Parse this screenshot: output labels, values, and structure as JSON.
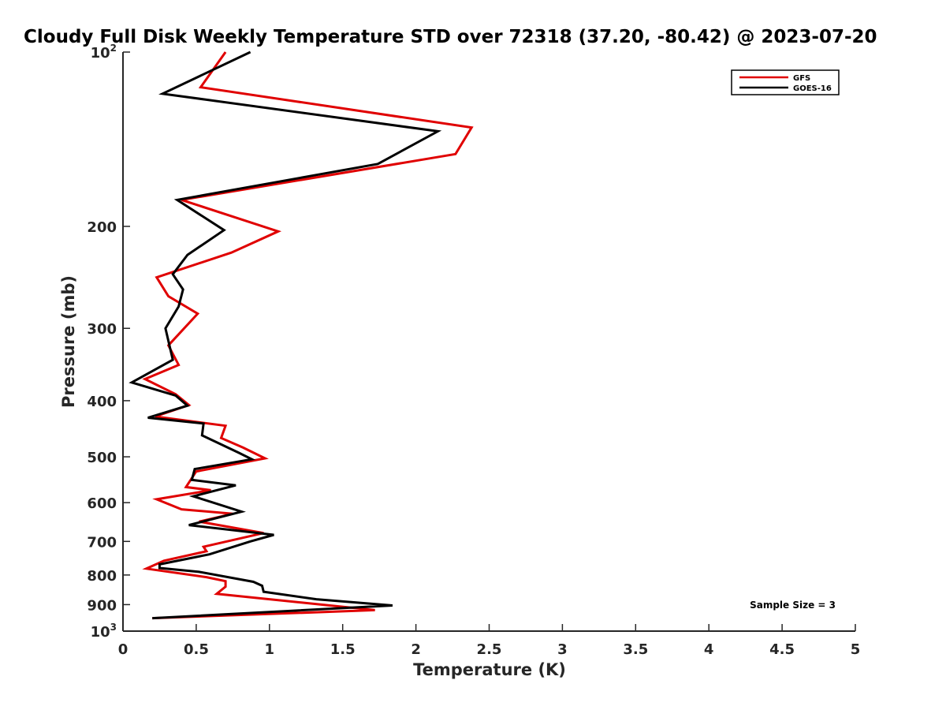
{
  "chart_data": {
    "type": "line",
    "title": "Cloudy Full Disk Weekly Temperature STD over 72318 (37.20, -80.42) @ 2023-07-20",
    "xlabel": "Temperature (K)",
    "ylabel": "Pressure (mb)",
    "xlim": [
      0,
      5
    ],
    "ylim": [
      1000,
      100
    ],
    "yscale": "log",
    "x_ticks": [
      "0",
      "0.5",
      "1",
      "1.5",
      "2",
      "2.5",
      "3",
      "3.5",
      "4",
      "4.5",
      "5"
    ],
    "y_ticks": [
      {
        "value": 100,
        "base": "10",
        "exp": "2"
      },
      {
        "value": 200,
        "label": "200"
      },
      {
        "value": 300,
        "label": "300"
      },
      {
        "value": 400,
        "label": "400"
      },
      {
        "value": 500,
        "label": "500"
      },
      {
        "value": 600,
        "label": "600"
      },
      {
        "value": 700,
        "label": "700"
      },
      {
        "value": 800,
        "label": "800"
      },
      {
        "value": 900,
        "label": "900"
      },
      {
        "value": 1000,
        "base": "10",
        "exp": "3"
      }
    ],
    "legend_position": "top-right",
    "grid": false,
    "annotation": "Sample Size = 3",
    "series": [
      {
        "name": "GFS",
        "color": "#e00000",
        "points": [
          [
            0.7,
            100
          ],
          [
            0.53,
            115
          ],
          [
            2.38,
            135
          ],
          [
            2.27,
            150
          ],
          [
            0.4,
            180
          ],
          [
            1.06,
            204
          ],
          [
            0.74,
            222
          ],
          [
            0.23,
            245
          ],
          [
            0.31,
            264
          ],
          [
            0.51,
            283
          ],
          [
            0.31,
            321
          ],
          [
            0.38,
            347
          ],
          [
            0.15,
            367
          ],
          [
            0.36,
            390
          ],
          [
            0.45,
            407
          ],
          [
            0.22,
            426
          ],
          [
            0.7,
            442
          ],
          [
            0.67,
            464
          ],
          [
            0.82,
            482
          ],
          [
            0.97,
            503
          ],
          [
            0.5,
            530
          ],
          [
            0.43,
            564
          ],
          [
            0.6,
            571
          ],
          [
            0.23,
            592
          ],
          [
            0.4,
            616
          ],
          [
            0.75,
            627
          ],
          [
            0.52,
            647
          ],
          [
            0.96,
            677
          ],
          [
            0.55,
            715
          ],
          [
            0.57,
            728
          ],
          [
            0.28,
            756
          ],
          [
            0.16,
            780
          ],
          [
            0.57,
            807
          ],
          [
            0.7,
            820
          ],
          [
            0.7,
            838
          ],
          [
            0.64,
            862
          ],
          [
            1.72,
            920
          ],
          [
            0.2,
            950
          ]
        ]
      },
      {
        "name": "GOES-16",
        "color": "#000000",
        "points": [
          [
            0.87,
            100
          ],
          [
            0.27,
            118
          ],
          [
            2.15,
            137
          ],
          [
            1.74,
            156
          ],
          [
            0.37,
            180
          ],
          [
            0.69,
            203
          ],
          [
            0.44,
            224
          ],
          [
            0.34,
            242
          ],
          [
            0.41,
            257
          ],
          [
            0.38,
            275
          ],
          [
            0.29,
            300
          ],
          [
            0.34,
            340
          ],
          [
            0.06,
            372
          ],
          [
            0.36,
            392
          ],
          [
            0.44,
            408
          ],
          [
            0.17,
            428
          ],
          [
            0.55,
            438
          ],
          [
            0.54,
            459
          ],
          [
            0.79,
            492
          ],
          [
            0.88,
            505
          ],
          [
            0.49,
            525
          ],
          [
            0.47,
            548
          ],
          [
            0.77,
            560
          ],
          [
            0.48,
            585
          ],
          [
            0.81,
            622
          ],
          [
            0.45,
            656
          ],
          [
            1.03,
            682
          ],
          [
            0.87,
            700
          ],
          [
            0.59,
            737
          ],
          [
            0.25,
            767
          ],
          [
            0.25,
            778
          ],
          [
            0.52,
            790
          ],
          [
            0.89,
            822
          ],
          [
            0.95,
            835
          ],
          [
            0.96,
            855
          ],
          [
            1.32,
            881
          ],
          [
            1.84,
            903
          ],
          [
            0.2,
            950
          ]
        ]
      }
    ]
  }
}
